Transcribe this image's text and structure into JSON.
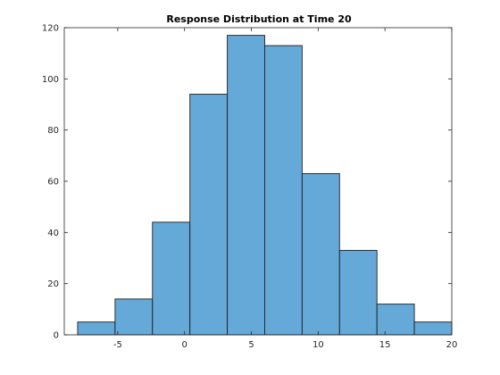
{
  "chart_data": {
    "type": "bar",
    "title": "Response Distribution at Time 20",
    "xlabel": "",
    "ylabel": "",
    "bin_edges": [
      -8,
      -5.2,
      -2.4,
      0.4,
      3.2,
      6,
      8.8,
      11.6,
      14.4,
      17.2,
      20
    ],
    "values": [
      5,
      14,
      44,
      94,
      117,
      113,
      63,
      33,
      12,
      5
    ],
    "xlim": [
      -9,
      20
    ],
    "ylim": [
      0,
      120
    ],
    "xticks": [
      -5,
      0,
      5,
      10,
      15,
      20
    ],
    "yticks": [
      0,
      20,
      40,
      60,
      80,
      100,
      120
    ],
    "bar_color": "#64a9d8",
    "edge_color": "#1f1f1f",
    "grid": false,
    "box": true
  }
}
